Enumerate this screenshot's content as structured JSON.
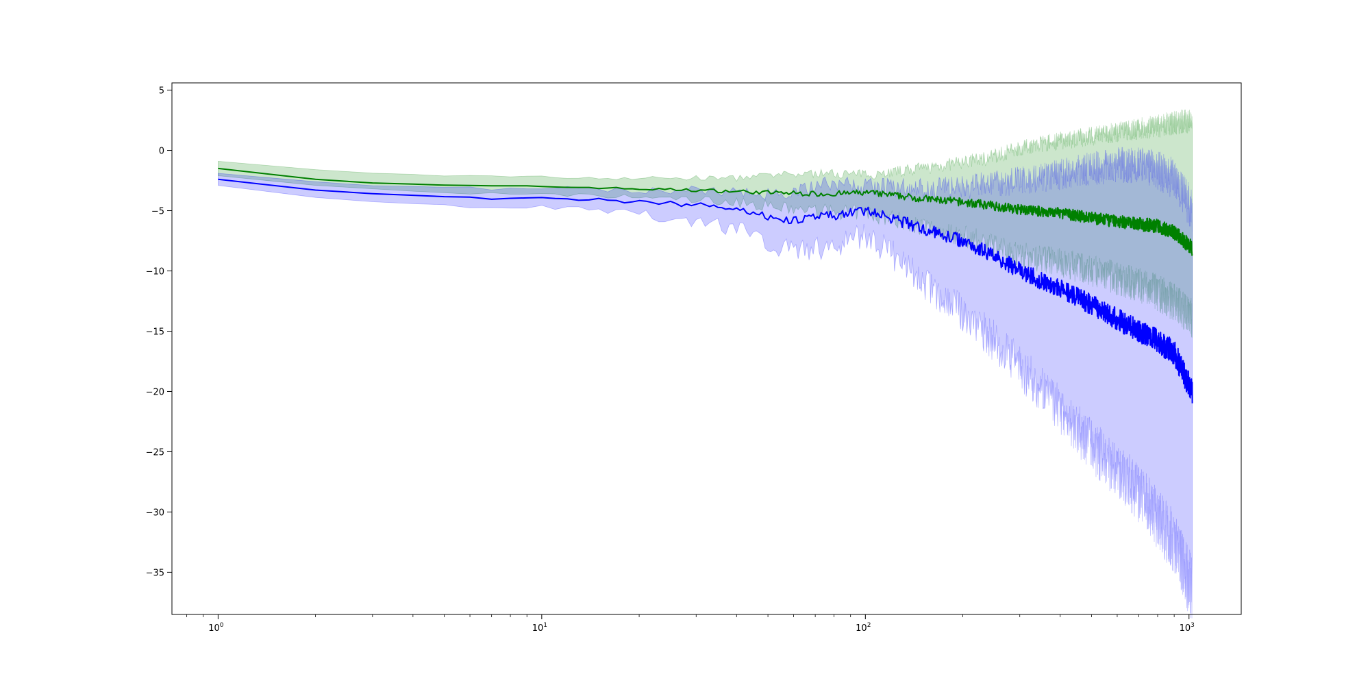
{
  "chart_data": {
    "type": "line",
    "title": "",
    "xlabel": "",
    "ylabel": "",
    "x_scale": "log",
    "xlim": [
      0.72,
      1450
    ],
    "ylim": [
      -38.5,
      5.6
    ],
    "grid": false,
    "legend": "none",
    "x_major_ticks": [
      {
        "value": 1,
        "base": "10",
        "exp": "0"
      },
      {
        "value": 10,
        "base": "10",
        "exp": "1"
      },
      {
        "value": 100,
        "base": "10",
        "exp": "2"
      },
      {
        "value": 1000,
        "base": "10",
        "exp": "3"
      }
    ],
    "y_ticks": [
      {
        "value": 5,
        "label": "5"
      },
      {
        "value": 0,
        "label": "0"
      },
      {
        "value": -5,
        "label": "−5"
      },
      {
        "value": -10,
        "label": "−10"
      },
      {
        "value": -15,
        "label": "−15"
      },
      {
        "value": -20,
        "label": "−20"
      },
      {
        "value": -25,
        "label": "−25"
      },
      {
        "value": -30,
        "label": "−30"
      },
      {
        "value": -35,
        "label": "−35"
      }
    ],
    "series": [
      {
        "color": "#008000",
        "band_color": "#008000",
        "x": [
          1,
          1.5,
          2,
          3,
          4,
          5,
          7,
          10,
          15,
          20,
          30,
          40,
          50,
          60,
          70,
          80,
          100,
          120,
          150,
          200,
          250,
          300,
          400,
          500,
          600,
          700,
          800,
          900,
          1024
        ],
        "mean": [
          -1.5,
          -2.0,
          -2.4,
          -2.7,
          -2.8,
          -2.9,
          -2.95,
          -3.0,
          -3.1,
          -3.2,
          -3.3,
          -3.4,
          -3.5,
          -3.55,
          -3.6,
          -3.6,
          -3.5,
          -3.7,
          -4.0,
          -4.3,
          -4.6,
          -4.9,
          -5.2,
          -5.6,
          -5.9,
          -6.1,
          -6.3,
          -6.8,
          -8.1
        ],
        "upper": [
          -0.9,
          -1.3,
          -1.6,
          -1.9,
          -2.0,
          -2.1,
          -2.1,
          -2.2,
          -2.3,
          -2.3,
          -2.3,
          -2.3,
          -2.1,
          -2.0,
          -1.9,
          -1.9,
          -2.0,
          -1.8,
          -1.5,
          -1.0,
          -0.5,
          0.2,
          0.8,
          1.2,
          1.5,
          1.8,
          2.0,
          2.3,
          2.5
        ],
        "lower": [
          -2.1,
          -2.6,
          -2.9,
          -3.2,
          -3.4,
          -3.5,
          -3.6,
          -3.7,
          -3.8,
          -3.9,
          -4.1,
          -4.3,
          -4.6,
          -4.9,
          -5.0,
          -5.1,
          -5.2,
          -5.6,
          -6.3,
          -7.1,
          -7.9,
          -8.6,
          -9.3,
          -10.0,
          -10.6,
          -11.2,
          -11.8,
          -12.6,
          -14.0
        ],
        "noise": 0.35
      },
      {
        "color": "#0000ff",
        "band_color": "#0000ff",
        "x": [
          1,
          1.5,
          2,
          3,
          4,
          5,
          7,
          10,
          15,
          20,
          30,
          40,
          50,
          60,
          70,
          80,
          100,
          120,
          150,
          200,
          250,
          300,
          400,
          500,
          600,
          700,
          800,
          900,
          1024
        ],
        "mean": [
          -2.4,
          -2.9,
          -3.3,
          -3.6,
          -3.7,
          -3.8,
          -4.0,
          -4.0,
          -4.1,
          -4.3,
          -4.5,
          -4.8,
          -5.5,
          -5.8,
          -5.6,
          -5.4,
          -5.0,
          -5.6,
          -6.5,
          -7.5,
          -8.7,
          -10.0,
          -11.5,
          -12.8,
          -14.0,
          -15.0,
          -15.8,
          -16.8,
          -20.0
        ],
        "upper": [
          -1.9,
          -2.3,
          -2.6,
          -2.9,
          -3.0,
          -3.0,
          -3.2,
          -3.1,
          -3.2,
          -3.3,
          -3.3,
          -3.4,
          -3.6,
          -3.4,
          -3.0,
          -2.7,
          -3.0,
          -3.1,
          -3.2,
          -3.0,
          -2.8,
          -2.5,
          -2.0,
          -1.5,
          -1.2,
          -1.3,
          -1.6,
          -2.4,
          -5.0
        ],
        "lower": [
          -2.9,
          -3.5,
          -3.9,
          -4.3,
          -4.4,
          -4.6,
          -4.7,
          -4.8,
          -5.0,
          -5.3,
          -5.8,
          -6.5,
          -7.6,
          -8.4,
          -8.2,
          -7.8,
          -7.0,
          -8.5,
          -11.0,
          -13.5,
          -15.8,
          -18.0,
          -21.5,
          -24.5,
          -26.5,
          -28.5,
          -30.5,
          -32.5,
          -36.5
        ],
        "noise": 0.6
      }
    ]
  }
}
